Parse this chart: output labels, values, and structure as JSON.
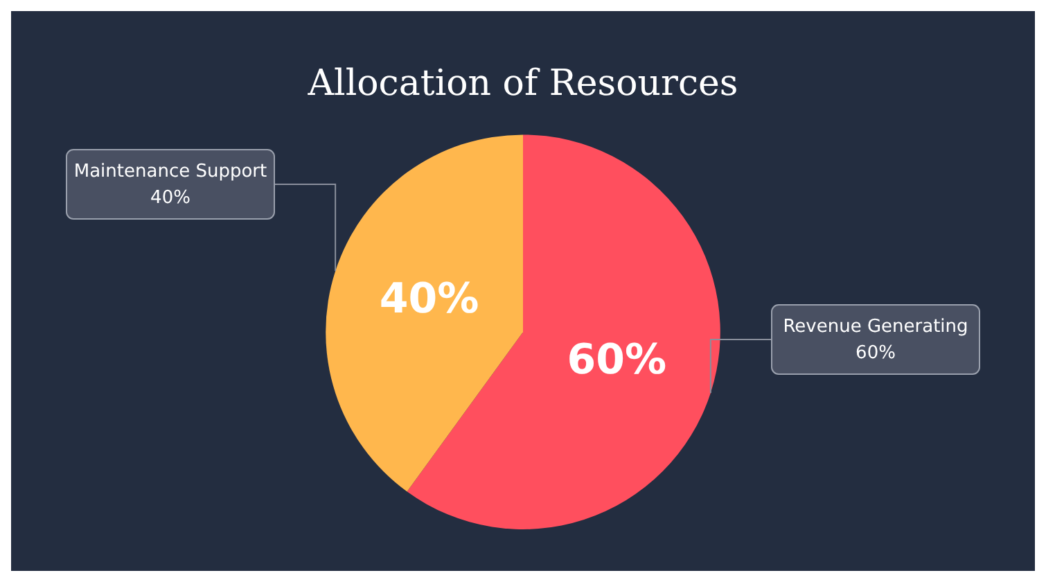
{
  "chart_data": {
    "type": "pie",
    "title": "Allocation of Resources",
    "categories": [
      "Revenue Generating",
      "Maintenance Support"
    ],
    "values": [
      60,
      40
    ],
    "colors": [
      "#ff4f5e",
      "#ffb74d"
    ],
    "value_labels": [
      "60%",
      "40%"
    ],
    "legend": false
  }
}
